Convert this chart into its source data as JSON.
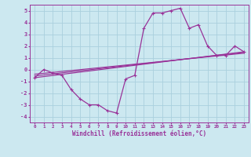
{
  "xlabel": "Windchill (Refroidissement éolien,°C)",
  "background_color": "#cce8f0",
  "grid_color": "#aad0dd",
  "line_color": "#993399",
  "ylim": [
    -4.5,
    5.5
  ],
  "xlim": [
    -0.5,
    23.5
  ],
  "yticks": [
    -4,
    -3,
    -2,
    -1,
    0,
    1,
    2,
    3,
    4,
    5
  ],
  "series": [
    [
      0,
      -0.7
    ],
    [
      1,
      0.0
    ],
    [
      2,
      -0.3
    ],
    [
      3,
      -0.5
    ],
    [
      4,
      -1.7
    ],
    [
      5,
      -2.5
    ],
    [
      6,
      -3.0
    ],
    [
      7,
      -3.0
    ],
    [
      8,
      -3.5
    ],
    [
      9,
      -3.7
    ],
    [
      10,
      -0.8
    ],
    [
      11,
      -0.5
    ],
    [
      12,
      3.5
    ],
    [
      13,
      4.8
    ],
    [
      14,
      4.8
    ],
    [
      15,
      5.0
    ],
    [
      16,
      5.2
    ],
    [
      17,
      3.5
    ],
    [
      18,
      3.8
    ],
    [
      19,
      2.0
    ],
    [
      20,
      1.2
    ],
    [
      21,
      1.2
    ],
    [
      22,
      2.0
    ],
    [
      23,
      1.5
    ]
  ],
  "line_straight1": [
    [
      0,
      -0.7
    ],
    [
      23,
      1.5
    ]
  ],
  "line_straight2": [
    [
      0,
      -0.55
    ],
    [
      23,
      1.45
    ]
  ],
  "line_straight3": [
    [
      0,
      -0.4
    ],
    [
      23,
      1.38
    ]
  ]
}
